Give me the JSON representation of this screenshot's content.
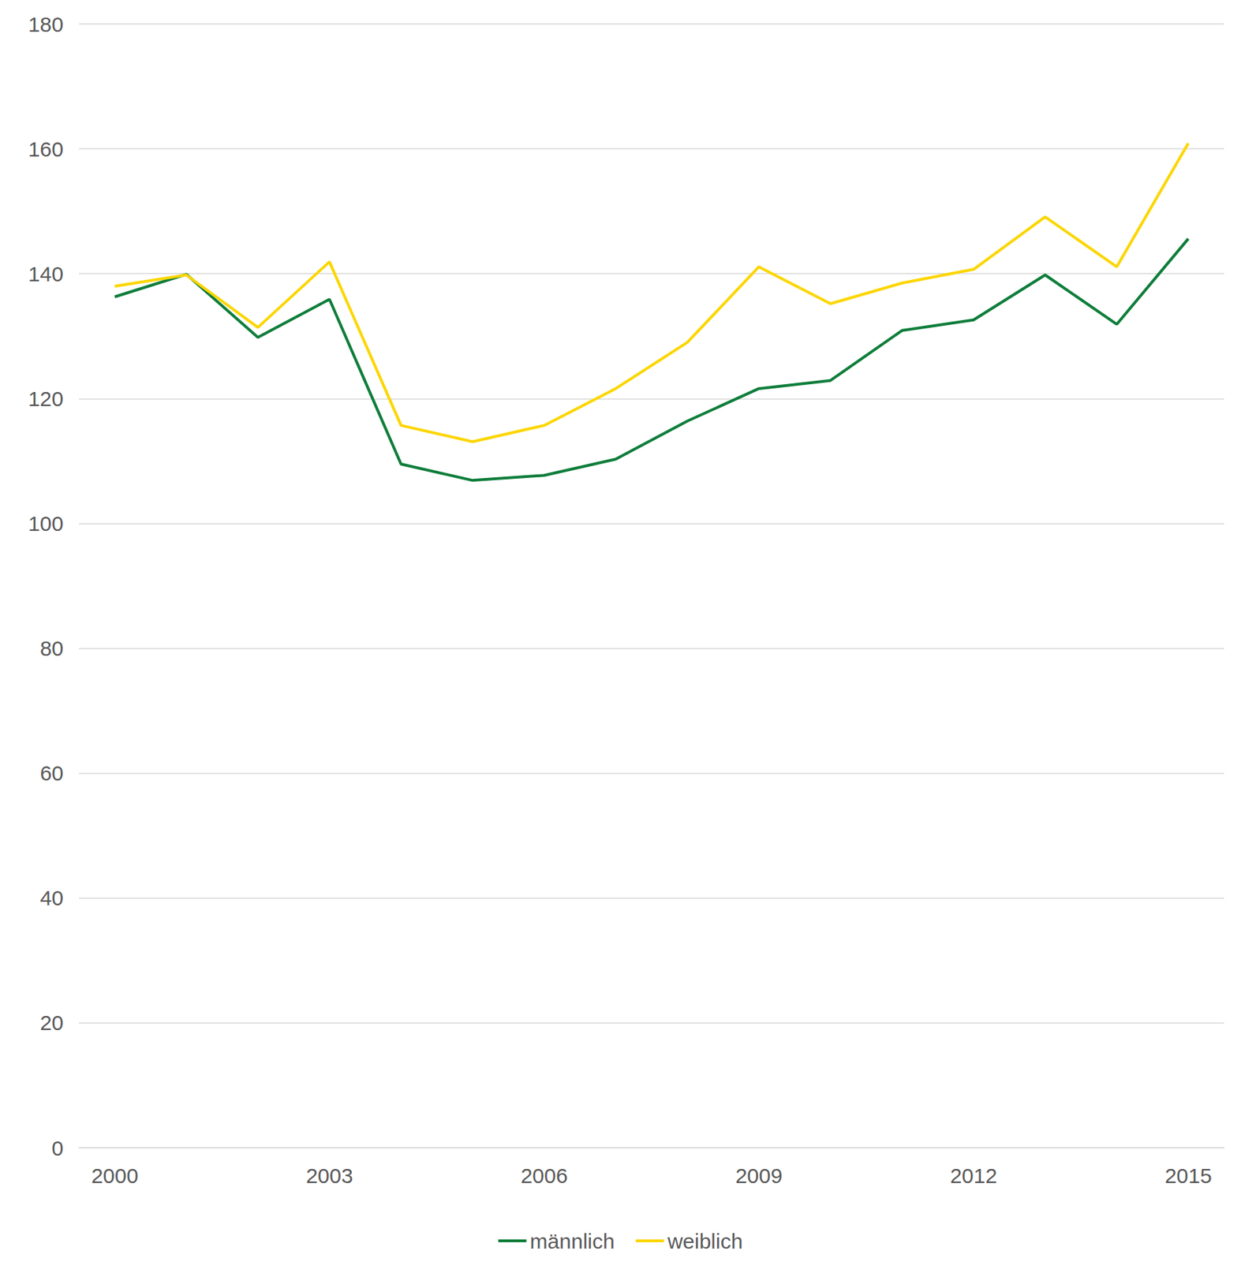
{
  "chart_data": {
    "type": "line",
    "categories": [
      "2000",
      null,
      null,
      "2003",
      null,
      null,
      "2006",
      null,
      null,
      "2009",
      null,
      null,
      "2012",
      null,
      null,
      "2015"
    ],
    "series": [
      {
        "name": "männlich",
        "color": "#0e7d3a",
        "values": [
          136.3,
          139.9,
          129.8,
          135.9,
          109.5,
          106.9,
          107.7,
          110.3,
          116.4,
          121.6,
          122.9,
          130.9,
          132.6,
          139.8,
          131.9,
          145.6
        ]
      },
      {
        "name": "weiblich",
        "color": "#fcd600",
        "values": [
          138.0,
          139.8,
          131.4,
          141.9,
          115.7,
          113.1,
          115.7,
          121.6,
          129.0,
          141.1,
          135.2,
          138.5,
          140.7,
          149.1,
          141.1,
          160.9
        ]
      }
    ],
    "ylim": [
      0,
      180
    ],
    "yticks": [
      0,
      20,
      40,
      60,
      80,
      100,
      120,
      140,
      160,
      180
    ],
    "grid": true,
    "legend": "bottom"
  }
}
